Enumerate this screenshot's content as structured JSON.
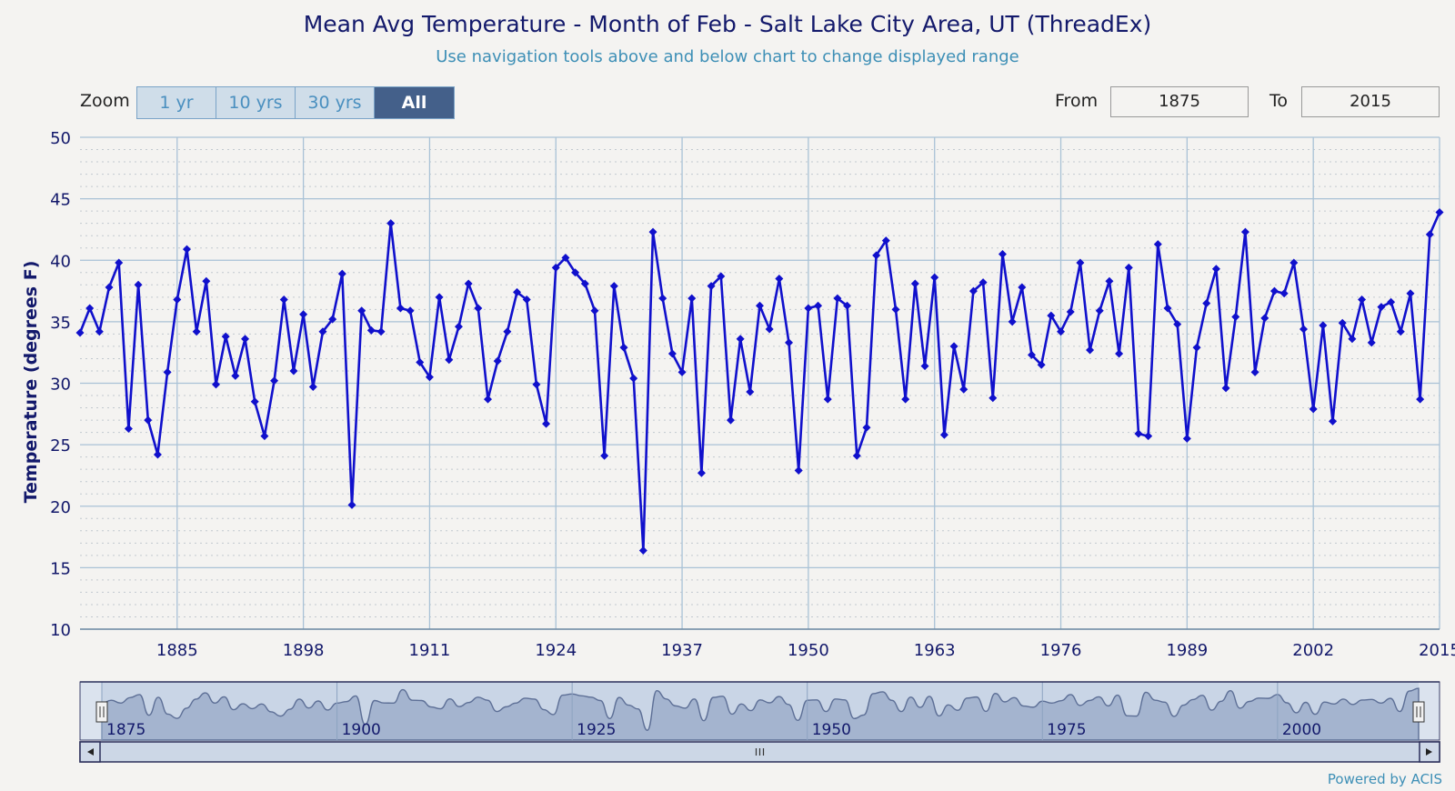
{
  "header": {
    "title": "Mean Avg Temperature - Month of Feb - Salt Lake City Area, UT (ThreadEx)",
    "subtitle": "Use navigation tools above and below chart to change displayed range"
  },
  "zoom": {
    "label": "Zoom",
    "buttons": [
      "1 yr",
      "10 yrs",
      "30 yrs",
      "All"
    ],
    "active": "All"
  },
  "range": {
    "from_label": "From",
    "from_value": "1875",
    "to_label": "To",
    "to_value": "2015"
  },
  "footer": {
    "credit": "Powered by ACIS"
  },
  "colors": {
    "line": "#1010cc",
    "grid": "#a9c2d6",
    "navigator_fill": "#a4b4cf",
    "navigator_line": "#5d6f96"
  },
  "chart_data": {
    "type": "line",
    "title": "Mean Avg Temperature - Month of Feb - Salt Lake City Area, UT (ThreadEx)",
    "ylabel": "Temperature (degrees F)",
    "ylim": [
      10,
      50
    ],
    "y_ticks": [
      10,
      15,
      20,
      25,
      30,
      35,
      40,
      45,
      50
    ],
    "xlim": [
      1875,
      2015
    ],
    "x_ticks": [
      1885,
      1898,
      1911,
      1924,
      1937,
      1950,
      1963,
      1976,
      1989,
      2002,
      2015
    ],
    "navigator_ticks": [
      1875,
      1900,
      1925,
      1950,
      1975,
      2000
    ],
    "grid": true,
    "legend": "none",
    "series": [
      {
        "x": [
          1875,
          1876,
          1877,
          1878,
          1879,
          1880,
          1881,
          1882,
          1883,
          1884,
          1885,
          1886,
          1887,
          1888,
          1889,
          1890,
          1891,
          1892,
          1893,
          1894,
          1895,
          1896,
          1897,
          1898,
          1899,
          1900,
          1901,
          1902,
          1903,
          1904,
          1905,
          1906,
          1907,
          1908,
          1909,
          1910,
          1911,
          1912,
          1913,
          1914,
          1915,
          1916,
          1917,
          1918,
          1919,
          1920,
          1921,
          1922,
          1923,
          1924,
          1925,
          1926,
          1927,
          1928,
          1929,
          1930,
          1931,
          1932,
          1933,
          1934,
          1935,
          1936,
          1937,
          1938,
          1939,
          1940,
          1941,
          1942,
          1943,
          1944,
          1945,
          1946,
          1947,
          1948,
          1949,
          1950,
          1951,
          1952,
          1953,
          1954,
          1955,
          1956,
          1957,
          1958,
          1959,
          1960,
          1961,
          1962,
          1963,
          1964,
          1965,
          1966,
          1967,
          1968,
          1969,
          1970,
          1971,
          1972,
          1973,
          1974,
          1975,
          1976,
          1977,
          1978,
          1979,
          1980,
          1981,
          1982,
          1983,
          1984,
          1985,
          1986,
          1987,
          1988,
          1989,
          1990,
          1991,
          1992,
          1993,
          1994,
          1995,
          1996,
          1997,
          1998,
          1999,
          2000,
          2001,
          2002,
          2003,
          2004,
          2005,
          2006,
          2007,
          2008,
          2009,
          2010,
          2011,
          2012,
          2013,
          2014,
          2015
        ],
        "values": [
          34.1,
          36.1,
          34.2,
          37.8,
          39.8,
          26.3,
          38.0,
          27.0,
          24.2,
          30.9,
          36.8,
          40.9,
          34.2,
          38.3,
          29.9,
          33.8,
          30.6,
          33.6,
          28.5,
          25.7,
          30.2,
          36.8,
          31.0,
          35.6,
          29.7,
          34.2,
          35.2,
          38.9,
          20.1,
          35.9,
          34.3,
          34.2,
          43.0,
          36.1,
          35.9,
          31.7,
          30.5,
          37.0,
          31.9,
          34.6,
          38.1,
          36.1,
          28.7,
          31.8,
          34.2,
          37.4,
          36.8,
          29.9,
          26.7,
          39.4,
          40.2,
          39.0,
          38.1,
          35.9,
          24.1,
          37.9,
          32.9,
          30.4,
          16.4,
          42.3,
          36.9,
          32.4,
          30.9,
          36.9,
          22.7,
          37.9,
          38.7,
          27.0,
          33.6,
          29.3,
          36.3,
          34.4,
          38.5,
          33.3,
          22.9,
          36.1,
          36.3,
          28.7,
          36.9,
          36.3,
          24.1,
          26.4,
          40.4,
          41.6,
          36.0,
          28.7,
          38.1,
          31.4,
          38.6,
          25.8,
          33.0,
          29.5,
          37.5,
          38.2,
          28.8,
          40.5,
          35.0,
          37.8,
          32.3,
          31.5,
          35.5,
          34.2,
          35.8,
          39.8,
          32.7,
          35.9,
          38.3,
          32.4,
          39.4,
          25.9,
          25.7,
          41.3,
          36.1,
          34.8,
          25.5,
          32.9,
          36.5,
          39.3,
          29.6,
          35.4,
          42.3,
          30.9,
          35.3,
          37.5,
          37.3,
          39.8,
          34.4,
          27.9,
          34.7,
          26.9,
          34.9,
          33.6,
          36.8,
          33.3,
          36.2,
          36.6,
          34.2,
          37.3,
          28.7,
          42.1,
          43.9
        ]
      }
    ]
  }
}
